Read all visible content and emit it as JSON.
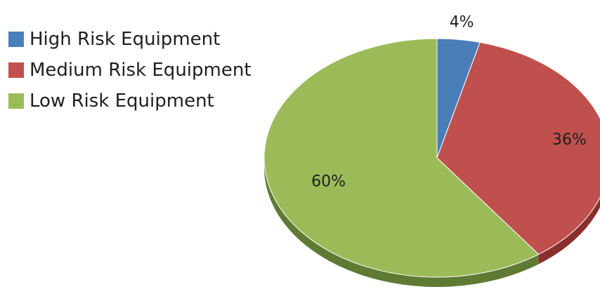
{
  "chart_data": {
    "type": "pie",
    "title": "",
    "categories": [
      "High Risk Equipment",
      "Medium Risk Equipment",
      "Low Risk Equipment"
    ],
    "values": [
      4,
      36,
      60
    ],
    "value_labels": [
      "4%",
      "36%",
      "60%"
    ],
    "colors": [
      "#4a7ebb",
      "#c0504d",
      "#9bbb59"
    ],
    "side_colors": [
      "#2f5a8a",
      "#8a2f2d",
      "#5f7a33"
    ],
    "legend_position": "top-left",
    "style": "3d-tilted"
  }
}
